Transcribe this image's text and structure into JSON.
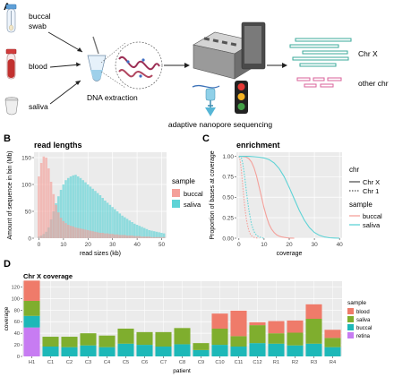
{
  "panels": {
    "A": {
      "letter": "A",
      "samples": [
        "buccal",
        "swab",
        "blood",
        "saliva"
      ],
      "step": "DNA extraction",
      "sequencing": "adaptive nanopore sequencing",
      "outputs": [
        "Chr X",
        "other chr"
      ]
    },
    "B": {
      "letter": "B"
    },
    "C": {
      "letter": "C"
    },
    "D": {
      "letter": "D"
    }
  },
  "colors": {
    "buccal": "#f4a09a",
    "saliva": "#5ed3d6",
    "blood": "#ef7b6a",
    "saliva_d": "#7fae2e",
    "buccal_d": "#1db8b8",
    "retina": "#c77cf2",
    "chrx_read": "#3aa89a",
    "other_read": "#d9609a"
  },
  "chart_data": [
    {
      "type": "bar",
      "title": "read lengths",
      "xlabel": "read sizes (kb)",
      "ylabel": "Amount of sequence in bin (Mb)",
      "xlim": [
        -2,
        52
      ],
      "ylim": [
        0,
        160
      ],
      "xticks": [
        0,
        10,
        20,
        30,
        40,
        50
      ],
      "yticks": [
        0,
        50,
        100,
        150
      ],
      "legend": {
        "title": "sample",
        "entries": [
          "buccal",
          "saliva"
        ],
        "placement": "right"
      },
      "bin_width": 1,
      "series": [
        {
          "name": "buccal",
          "start": 0,
          "values": [
            115,
            140,
            152,
            150,
            130,
            105,
            82,
            62,
            48,
            38,
            32,
            28,
            25,
            23,
            22,
            20,
            19,
            18,
            17,
            16,
            15,
            14,
            13,
            12,
            11,
            10,
            10,
            9,
            9,
            8,
            8,
            7,
            7,
            6,
            6,
            6,
            5,
            5,
            5,
            4,
            4,
            4,
            3,
            3,
            3,
            3,
            2,
            2,
            2,
            2,
            2,
            2
          ]
        },
        {
          "name": "saliva",
          "start": 0,
          "values": [
            3,
            5,
            8,
            12,
            20,
            35,
            50,
            65,
            78,
            90,
            100,
            108,
            112,
            115,
            117,
            118,
            115,
            112,
            108,
            104,
            100,
            96,
            92,
            88,
            84,
            80,
            75,
            70,
            66,
            62,
            58,
            54,
            50,
            46,
            42,
            39,
            36,
            33,
            30,
            27,
            25,
            23,
            21,
            19,
            17,
            15,
            14,
            13,
            12,
            11,
            10,
            9
          ]
        }
      ]
    },
    {
      "type": "line",
      "title": "enrichment",
      "xlabel": "coverage",
      "ylabel": "Proportion of bases at coverage",
      "xlim": [
        -1,
        41
      ],
      "ylim": [
        0,
        1.05
      ],
      "xticks": [
        0,
        10,
        20,
        30,
        40
      ],
      "yticks": [
        0.0,
        0.25,
        0.5,
        0.75,
        1.0
      ],
      "yticklabels": [
        "0.00",
        "0.25",
        "0.50",
        "0.75",
        "1.00"
      ],
      "legend": {
        "chr_title": "chr",
        "chr_entries": [
          "Chr X",
          "Chr 1"
        ],
        "sample_title": "sample",
        "sample_entries": [
          "buccal",
          "saliva"
        ],
        "placement": "right"
      },
      "series": [
        {
          "name": "buccal",
          "chr": "Chr X",
          "x": [
            0,
            1,
            2,
            3,
            4,
            5,
            6,
            7,
            8,
            9,
            10,
            11,
            12,
            13,
            14,
            15,
            16,
            17,
            18,
            19,
            20,
            21,
            22
          ],
          "y": [
            1.0,
            1.0,
            0.995,
            0.99,
            0.97,
            0.93,
            0.86,
            0.76,
            0.63,
            0.5,
            0.37,
            0.26,
            0.17,
            0.11,
            0.07,
            0.04,
            0.025,
            0.015,
            0.01,
            0.005,
            0.002,
            0.001,
            0
          ]
        },
        {
          "name": "saliva",
          "chr": "Chr X",
          "x": [
            0,
            2,
            4,
            6,
            8,
            10,
            12,
            14,
            16,
            18,
            20,
            22,
            24,
            26,
            28,
            30,
            32,
            34,
            36,
            38,
            40
          ],
          "y": [
            1.0,
            1.0,
            1.0,
            0.995,
            0.99,
            0.98,
            0.96,
            0.92,
            0.85,
            0.75,
            0.62,
            0.48,
            0.34,
            0.22,
            0.13,
            0.07,
            0.035,
            0.015,
            0.006,
            0.002,
            0
          ]
        },
        {
          "name": "buccal",
          "chr": "Chr 1",
          "x": [
            0,
            0.5,
            1,
            1.5,
            2,
            2.5,
            3,
            3.5,
            4,
            4.5,
            5,
            6,
            7,
            8
          ],
          "y": [
            1.0,
            0.95,
            0.82,
            0.65,
            0.48,
            0.34,
            0.23,
            0.15,
            0.09,
            0.05,
            0.03,
            0.01,
            0.003,
            0
          ]
        },
        {
          "name": "saliva",
          "chr": "Chr 1",
          "x": [
            0,
            1,
            1.5,
            2,
            2.5,
            3,
            3.5,
            4,
            4.5,
            5,
            6,
            7,
            8,
            9,
            10
          ],
          "y": [
            1.0,
            0.98,
            0.92,
            0.82,
            0.7,
            0.57,
            0.45,
            0.34,
            0.25,
            0.17,
            0.08,
            0.035,
            0.015,
            0.005,
            0
          ]
        }
      ]
    },
    {
      "type": "bar",
      "title": "Chr X coverage",
      "xlabel": "patient",
      "ylabel": "coverage",
      "ylim": [
        0,
        130
      ],
      "yticks": [
        0,
        20,
        40,
        60,
        80,
        100,
        120
      ],
      "stacked": true,
      "categories": [
        "H1",
        "C1",
        "C2",
        "C3",
        "C4",
        "C5",
        "C6",
        "C7",
        "C8",
        "C9",
        "C10",
        "C11",
        "C12",
        "R1",
        "R2",
        "R3",
        "R4"
      ],
      "legend": {
        "title": "sample",
        "entries": [
          "blood",
          "saliva",
          "buccal",
          "retina"
        ],
        "placement": "right"
      },
      "series": [
        {
          "name": "retina",
          "values": [
            50,
            0,
            0,
            0,
            0,
            0,
            0,
            0,
            0,
            0,
            0,
            0,
            0,
            0,
            0,
            0,
            0
          ]
        },
        {
          "name": "buccal",
          "values": [
            20,
            17,
            16,
            19,
            16,
            22,
            20,
            17,
            21,
            11,
            20,
            17,
            23,
            22,
            19,
            22,
            16
          ]
        },
        {
          "name": "saliva",
          "values": [
            26,
            17,
            18,
            21,
            20,
            26,
            22,
            25,
            28,
            12,
            28,
            18,
            31,
            18,
            22,
            43,
            16
          ]
        },
        {
          "name": "blood",
          "values": [
            35,
            0,
            0,
            0,
            0,
            0,
            0,
            0,
            0,
            0,
            26,
            44,
            5,
            21,
            21,
            25,
            14
          ]
        }
      ]
    }
  ]
}
